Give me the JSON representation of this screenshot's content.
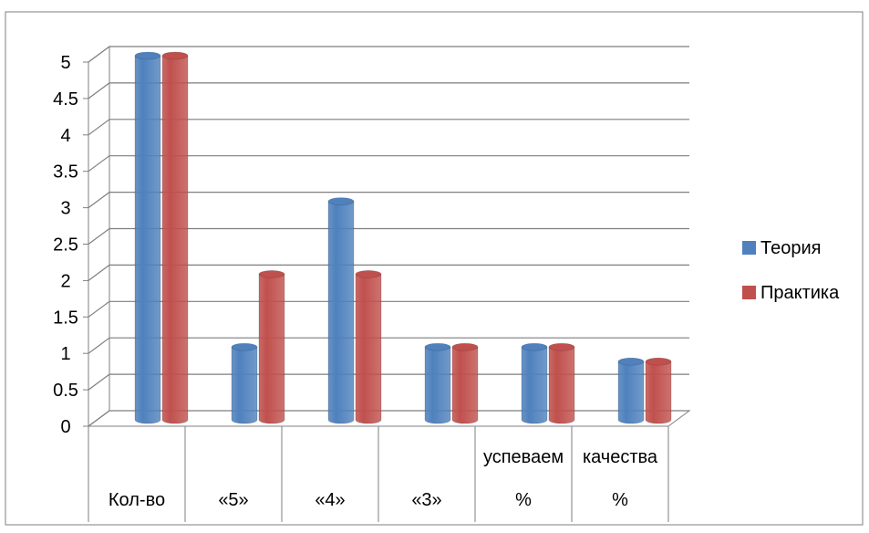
{
  "chart_data": {
    "type": "bar",
    "style": "3d-cylinder",
    "categories": [
      {
        "lines": [
          "",
          "Кол-во"
        ]
      },
      {
        "lines": [
          "",
          "«5»"
        ]
      },
      {
        "lines": [
          "",
          "«4»"
        ]
      },
      {
        "lines": [
          "",
          "«3»"
        ]
      },
      {
        "lines": [
          "успеваем",
          "%"
        ]
      },
      {
        "lines": [
          "качества",
          "%"
        ]
      }
    ],
    "series": [
      {
        "name": "Теория",
        "color": "#4f81bd",
        "values": [
          5,
          1,
          3,
          1,
          1,
          0.8
        ]
      },
      {
        "name": "Практика",
        "color": "#c0504d",
        "values": [
          5,
          2,
          2,
          1,
          1,
          0.8
        ]
      }
    ],
    "ylim": [
      0,
      5
    ],
    "yticks": [
      "0",
      "0.5",
      "1",
      "1.5",
      "2",
      "2.5",
      "3",
      "3.5",
      "4",
      "4.5",
      "5"
    ],
    "grid": true,
    "legend": "right"
  }
}
